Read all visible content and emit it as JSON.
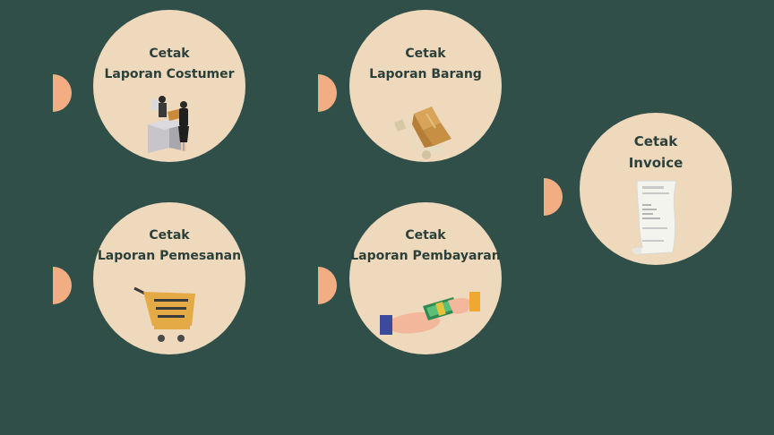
{
  "cards": [
    {
      "line1": "Cetak",
      "line2": "Laporan Costumer"
    },
    {
      "line1": "Cetak",
      "line2": "Laporan Barang"
    },
    {
      "line1": "Cetak",
      "line2": "Invoice"
    },
    {
      "line1": "Cetak",
      "line2": "Laporan Pemesanan"
    },
    {
      "line1": "Cetak",
      "line2": "Laporan Pembayaran"
    }
  ],
  "colors": {
    "background": "#2f4f48",
    "card": "#eed9bd",
    "accent": "#f3ad82",
    "text": "#2b403a"
  },
  "icons": [
    "customer-service-icon",
    "boxes-trolley-icon",
    "receipt-icon",
    "shopping-cart-icon",
    "payment-money-icon"
  ]
}
